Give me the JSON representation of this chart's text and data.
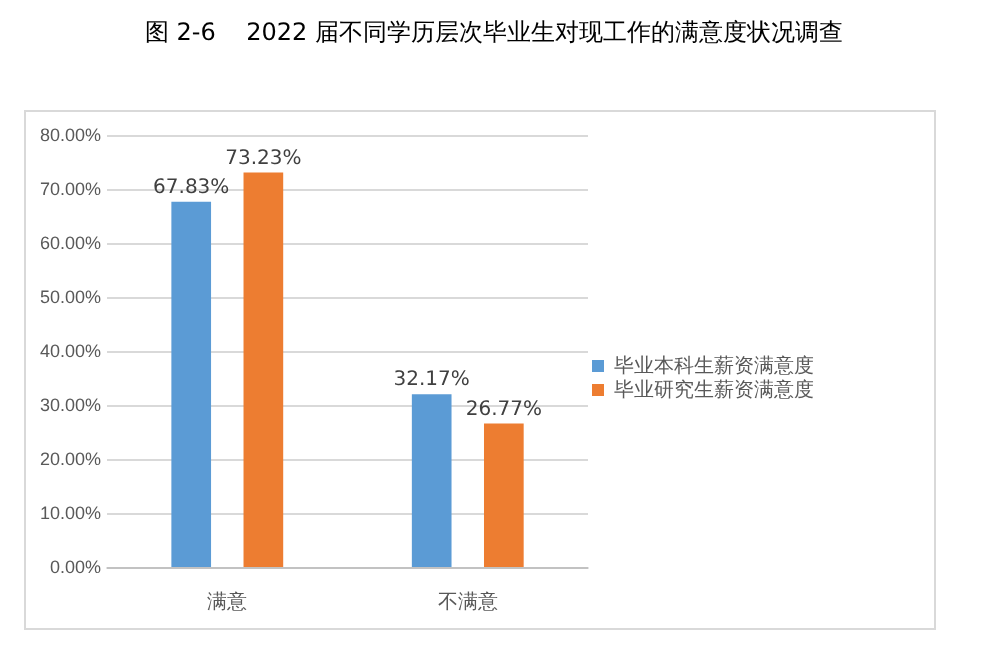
{
  "chart_data": {
    "type": "bar",
    "title": "图 2-6    2022 届不同学历层次毕业生对现工作的满意度状况调查",
    "categories": [
      "满意",
      "不满意"
    ],
    "series": [
      {
        "name": "毕业本科生薪资满意度",
        "color": "#5b9bd5",
        "values": [
          67.83,
          32.17
        ],
        "value_labels": [
          "67.83%",
          "32.17%"
        ]
      },
      {
        "name": "毕业研究生薪资满意度",
        "color": "#ed7d31",
        "values": [
          73.23,
          26.77
        ],
        "value_labels": [
          "73.23%",
          "26.77%"
        ]
      }
    ],
    "ylim": [
      0,
      80
    ],
    "yticks": [
      {
        "value": 0,
        "label": "0.00%"
      },
      {
        "value": 10,
        "label": "10.00%"
      },
      {
        "value": 20,
        "label": "20.00%"
      },
      {
        "value": 30,
        "label": "30.00%"
      },
      {
        "value": 40,
        "label": "40.00%"
      },
      {
        "value": 50,
        "label": "50.00%"
      },
      {
        "value": 60,
        "label": "60.00%"
      },
      {
        "value": 70,
        "label": "70.00%"
      },
      {
        "value": 80,
        "label": "80.00%"
      }
    ],
    "grid": "y",
    "legend": "right"
  }
}
